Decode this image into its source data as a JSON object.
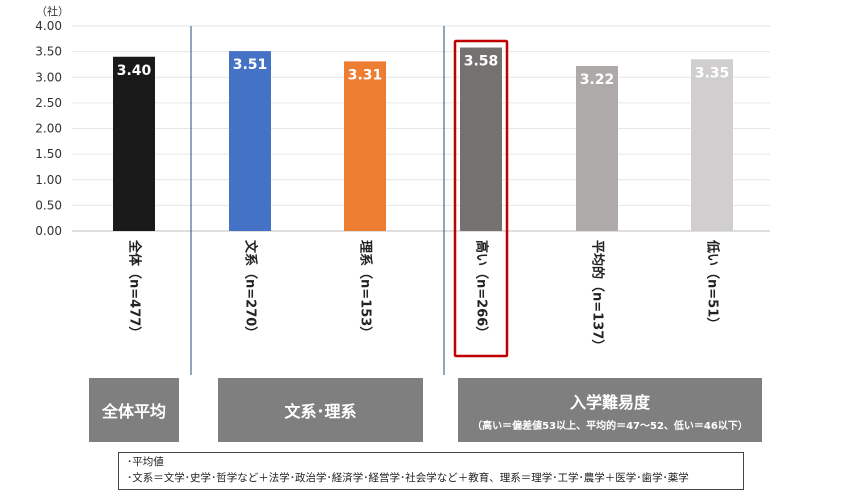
{
  "chart_data": {
    "type": "bar",
    "unit_label": "（社）",
    "ylim": [
      0,
      4
    ],
    "ytick_step": 0.5,
    "yticks": [
      "0.00",
      "0.50",
      "1.00",
      "1.50",
      "2.00",
      "2.50",
      "3.00",
      "3.50",
      "4.00"
    ],
    "grid": true,
    "categories": [
      "全体（n=477）",
      "文系（n=270）",
      "理系（n=153）",
      "高い（n=266）",
      "平均的（n=137）",
      "低い（n=51）"
    ],
    "values": [
      3.4,
      3.51,
      3.31,
      3.58,
      3.22,
      3.35
    ],
    "data_labels": [
      "3.40",
      "3.51",
      "3.31",
      "3.58",
      "3.22",
      "3.35"
    ],
    "colors": [
      "#1a1a1a",
      "#4472c4",
      "#ed7d31",
      "#767171",
      "#aeaaaa",
      "#d0cece"
    ],
    "highlight_index": 3,
    "highlight_color": "#c00000",
    "divider_color": "#1f4e79"
  },
  "groups": [
    {
      "title": "全体平均",
      "subtitle": ""
    },
    {
      "title": "文系･理系",
      "subtitle": ""
    },
    {
      "title": "入学難易度",
      "subtitle": "（高い＝偏差値53以上、平均的＝47～52、低い＝46以下）"
    }
  ],
  "note": {
    "line1": "･平均値",
    "line2": "･文系＝文学･史学･哲学など＋法学･政治学･経済学･経営学･社会学など＋教育、理系＝理学･工学･農学＋医学･歯学･薬学"
  }
}
